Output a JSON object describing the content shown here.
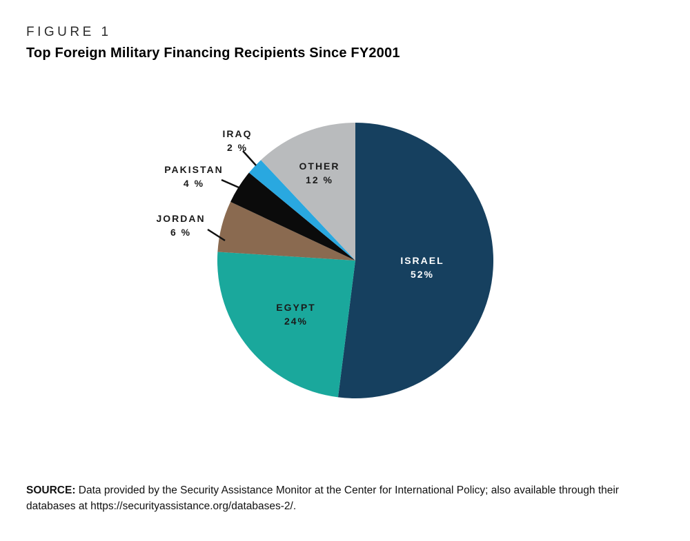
{
  "figure": {
    "kicker": "FIGURE 1",
    "title": "Top Foreign Military Financing Recipients Since FY2001"
  },
  "chart_data": {
    "type": "pie",
    "title": "Top Foreign Military Financing Recipients Since FY2001",
    "units": "percent",
    "start_angle_deg": 0,
    "direction": "clockwise",
    "legend": "none (direct slice labels)",
    "slices": [
      {
        "label": "ISRAEL",
        "value": 52,
        "display": "52%",
        "color": "#16405f",
        "label_placement": "inside"
      },
      {
        "label": "EGYPT",
        "value": 24,
        "display": "24%",
        "color": "#1aa89c",
        "label_placement": "inside"
      },
      {
        "label": "JORDAN",
        "value": 6,
        "display": "6 %",
        "color": "#8a6a50",
        "label_placement": "outside"
      },
      {
        "label": "PAKISTAN",
        "value": 4,
        "display": "4 %",
        "color": "#0b0b0b",
        "label_placement": "outside"
      },
      {
        "label": "IRAQ",
        "value": 2,
        "display": "2 %",
        "color": "#29a8e0",
        "label_placement": "outside"
      },
      {
        "label": "OTHER",
        "value": 12,
        "display": "12 %",
        "color": "#b9bbbd",
        "label_placement": "inside"
      }
    ]
  },
  "source": {
    "label": "SOURCE:",
    "text": "Data provided by the Security Assistance Monitor at the Center for International Policy; also available through their databases at https://securityassistance.org/databases-2/."
  }
}
